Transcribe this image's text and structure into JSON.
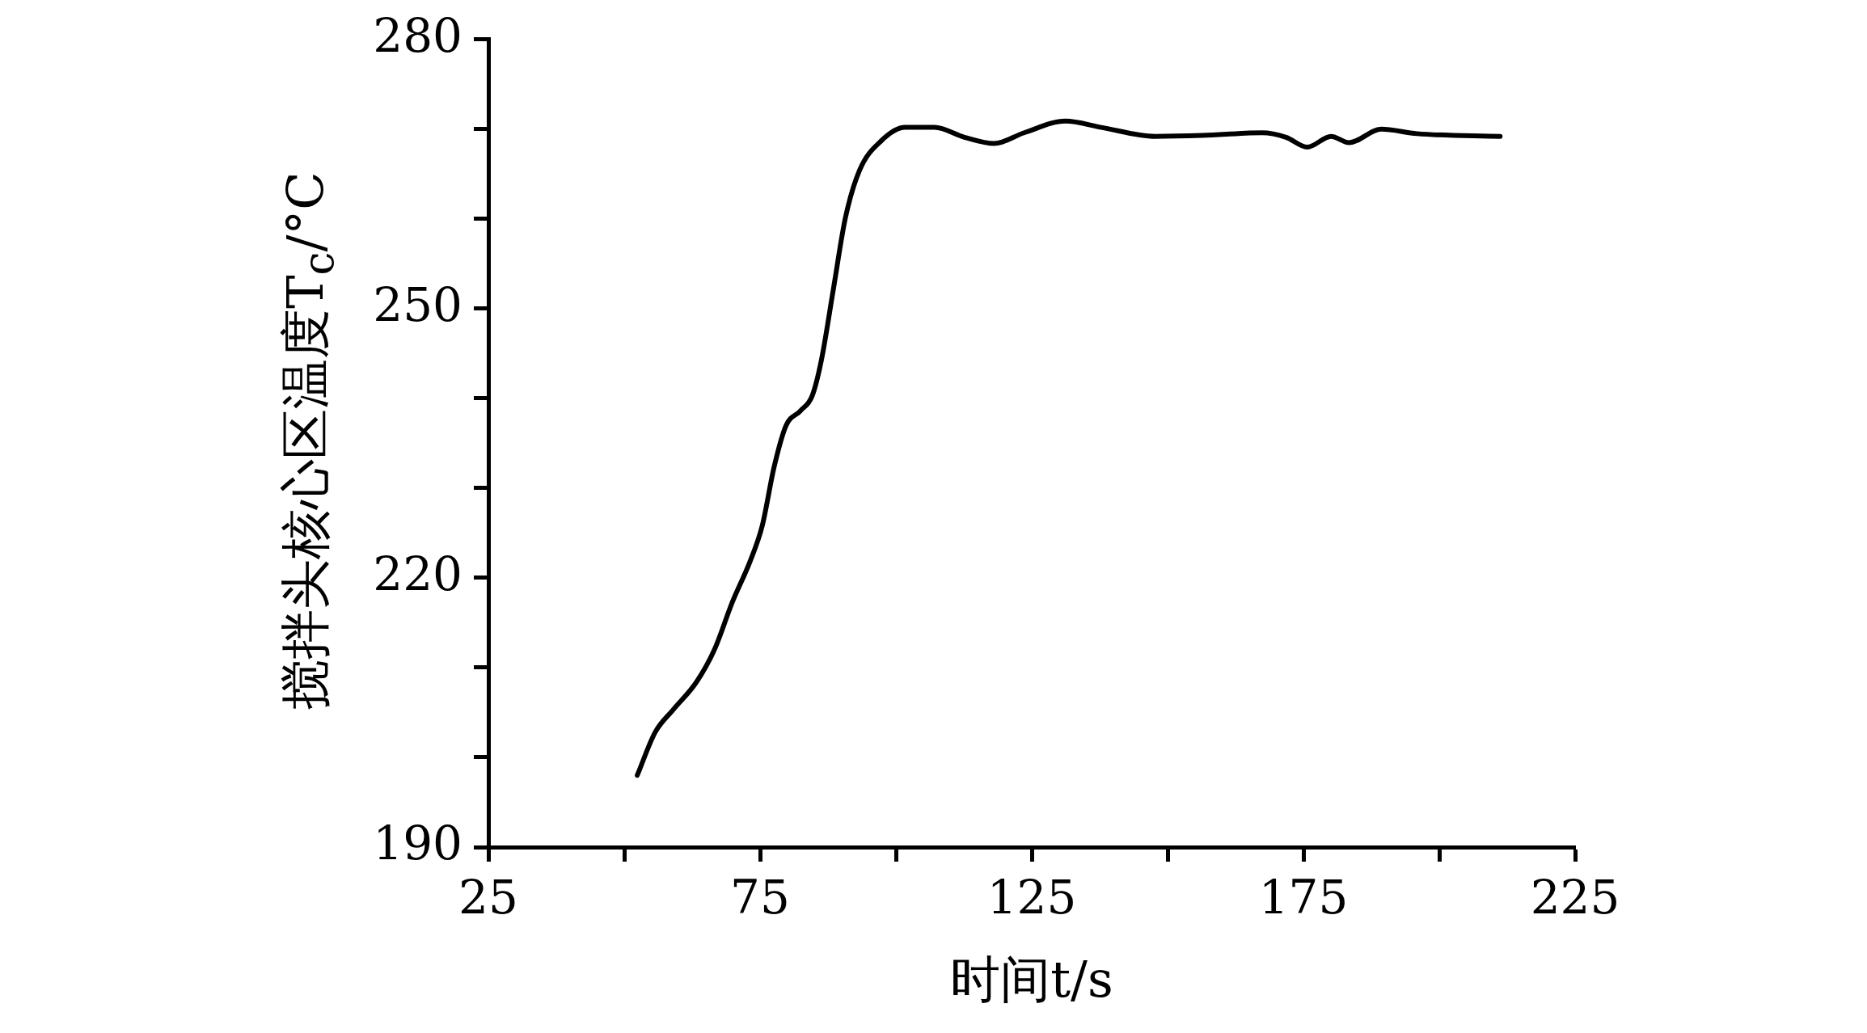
{
  "chart_data": {
    "type": "line",
    "xlabel": "时间t/s",
    "ylabel": "搅拌头核心区温度T$_{c}$/°C",
    "xlim": [
      25,
      225
    ],
    "xticks": [
      25,
      {
        "value": 50,
        "label": null
      },
      75,
      {
        "value": 100,
        "label": null
      },
      125,
      {
        "value": 150,
        "label": null
      },
      175,
      {
        "value": 200,
        "label": null
      },
      225
    ],
    "ylim": [
      190,
      280
    ],
    "yticks": [
      190,
      {
        "value": 200,
        "label": null
      },
      {
        "value": 210,
        "label": null
      },
      220,
      {
        "value": 230,
        "label": null
      },
      {
        "value": 240,
        "label": null
      },
      250,
      {
        "value": 260,
        "label": null
      },
      {
        "value": 270,
        "label": null
      },
      280
    ],
    "legend": false,
    "marker": "none",
    "line_style": "solid",
    "series": [
      {
        "color": "#000000",
        "x": [
          52.4,
          55.7,
          59.0,
          63.3,
          66.6,
          69.9,
          73.2,
          75.4,
          77.6,
          79.8,
          82.4,
          84.6,
          86.3,
          88.5,
          90.7,
          93.3,
          97.3,
          101.7,
          107.1,
          112.6,
          118.1,
          123.6,
          131.2,
          137.8,
          147.7,
          156.4,
          167.4,
          171.8,
          175.7,
          180.1,
          183.4,
          189.3,
          195.9,
          211.2
        ],
        "values": [
          198.0,
          202.8,
          205.3,
          208.4,
          212.0,
          217.3,
          221.9,
          225.8,
          232.4,
          237.0,
          238.6,
          240.3,
          244.3,
          252.2,
          260.1,
          265.4,
          268.7,
          270.2,
          270.2,
          269.1,
          268.4,
          269.6,
          270.9,
          270.2,
          269.2,
          269.3,
          269.6,
          269.1,
          268.0,
          269.2,
          268.5,
          270.0,
          269.5,
          269.2
        ]
      }
    ]
  }
}
